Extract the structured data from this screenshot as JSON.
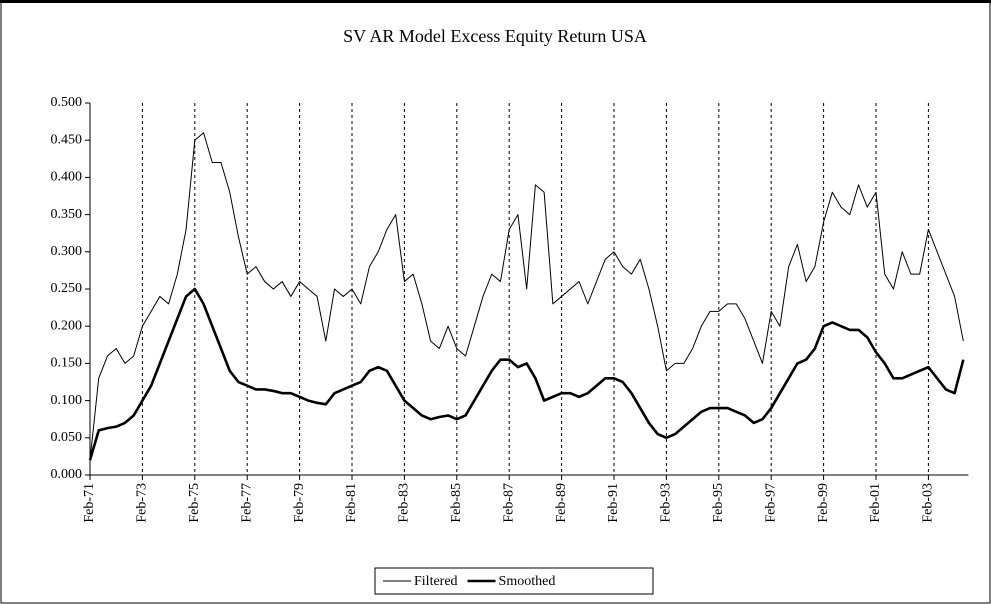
{
  "chart_data": {
    "type": "line",
    "title": "SV AR Model Excess Equity Return USA",
    "categories": [
      "Feb-71",
      null,
      null,
      null,
      null,
      null,
      "Feb-73",
      null,
      null,
      null,
      null,
      null,
      "Feb-75",
      null,
      null,
      null,
      null,
      null,
      "Feb-77",
      null,
      null,
      null,
      null,
      null,
      "Feb-79",
      null,
      null,
      null,
      null,
      null,
      "Feb-81",
      null,
      null,
      null,
      null,
      null,
      "Feb-83",
      null,
      null,
      null,
      null,
      null,
      "Feb-85",
      null,
      null,
      null,
      null,
      null,
      "Feb-87",
      null,
      null,
      null,
      null,
      null,
      "Feb-89",
      null,
      null,
      null,
      null,
      null,
      "Feb-91",
      null,
      null,
      null,
      null,
      null,
      "Feb-93",
      null,
      null,
      null,
      null,
      null,
      "Feb-95",
      null,
      null,
      null,
      null,
      null,
      "Feb-97",
      null,
      null,
      null,
      null,
      null,
      "Feb-99",
      null,
      null,
      null,
      null,
      null,
      "Feb-01",
      null,
      null,
      null,
      null,
      null,
      "Feb-03",
      null,
      null,
      null,
      null
    ],
    "series": [
      {
        "name": "Filtered",
        "color": "#000000",
        "line_width": 1,
        "values": [
          0.02,
          0.13,
          0.16,
          0.17,
          0.15,
          0.16,
          0.2,
          0.22,
          0.24,
          0.23,
          0.27,
          0.33,
          0.45,
          0.46,
          0.42,
          0.42,
          0.38,
          0.32,
          0.27,
          0.28,
          0.26,
          0.25,
          0.26,
          0.24,
          0.26,
          0.25,
          0.24,
          0.18,
          0.25,
          0.24,
          0.25,
          0.23,
          0.28,
          0.3,
          0.33,
          0.35,
          0.26,
          0.27,
          0.23,
          0.18,
          0.17,
          0.2,
          0.17,
          0.16,
          0.2,
          0.24,
          0.27,
          0.26,
          0.33,
          0.35,
          0.25,
          0.39,
          0.38,
          0.23,
          0.24,
          0.25,
          0.26,
          0.23,
          0.26,
          0.29,
          0.3,
          0.28,
          0.27,
          0.29,
          0.25,
          0.2,
          0.14,
          0.15,
          0.15,
          0.17,
          0.2,
          0.22,
          0.22,
          0.23,
          0.23,
          0.21,
          0.18,
          0.15,
          0.22,
          0.2,
          0.28,
          0.31,
          0.26,
          0.28,
          0.34,
          0.38,
          0.36,
          0.35,
          0.39,
          0.36,
          0.38,
          0.27,
          0.25,
          0.3,
          0.27,
          0.27,
          0.33,
          0.3,
          0.27,
          0.24,
          0.18
        ]
      },
      {
        "name": "Smoothed",
        "color": "#000000",
        "line_width": 2.6,
        "values": [
          0.02,
          0.06,
          0.063,
          0.065,
          0.07,
          0.08,
          0.1,
          0.12,
          0.15,
          0.18,
          0.21,
          0.24,
          0.25,
          0.23,
          0.2,
          0.17,
          0.14,
          0.125,
          0.12,
          0.115,
          0.115,
          0.113,
          0.11,
          0.11,
          0.105,
          0.1,
          0.097,
          0.095,
          0.11,
          0.115,
          0.12,
          0.125,
          0.14,
          0.145,
          0.14,
          0.12,
          0.1,
          0.09,
          0.08,
          0.075,
          0.078,
          0.08,
          0.075,
          0.08,
          0.1,
          0.12,
          0.14,
          0.155,
          0.155,
          0.145,
          0.15,
          0.13,
          0.1,
          0.105,
          0.11,
          0.11,
          0.105,
          0.11,
          0.12,
          0.13,
          0.13,
          0.125,
          0.11,
          0.09,
          0.07,
          0.055,
          0.05,
          0.055,
          0.065,
          0.075,
          0.085,
          0.09,
          0.09,
          0.09,
          0.085,
          0.08,
          0.07,
          0.075,
          0.09,
          0.11,
          0.13,
          0.15,
          0.155,
          0.17,
          0.2,
          0.205,
          0.2,
          0.195,
          0.195,
          0.185,
          0.165,
          0.15,
          0.13,
          0.13,
          0.135,
          0.14,
          0.145,
          0.13,
          0.115,
          0.11,
          0.155
        ]
      }
    ],
    "ylim": [
      0,
      0.5
    ],
    "yticks": [
      {
        "value": 0,
        "label": "0.000"
      },
      {
        "value": 0.05,
        "label": "0.050"
      },
      {
        "value": 0.1,
        "label": "0.100"
      },
      {
        "value": 0.15,
        "label": "0.150"
      },
      {
        "value": 0.2,
        "label": "0.200"
      },
      {
        "value": 0.25,
        "label": "0.250"
      },
      {
        "value": 0.3,
        "label": "0.300"
      },
      {
        "value": 0.35,
        "label": "0.350"
      },
      {
        "value": 0.4,
        "label": "0.400"
      },
      {
        "value": 0.45,
        "label": "0.450"
      },
      {
        "value": 0.5,
        "label": "0.500"
      }
    ],
    "x_grid": true,
    "legend": "bottom"
  }
}
